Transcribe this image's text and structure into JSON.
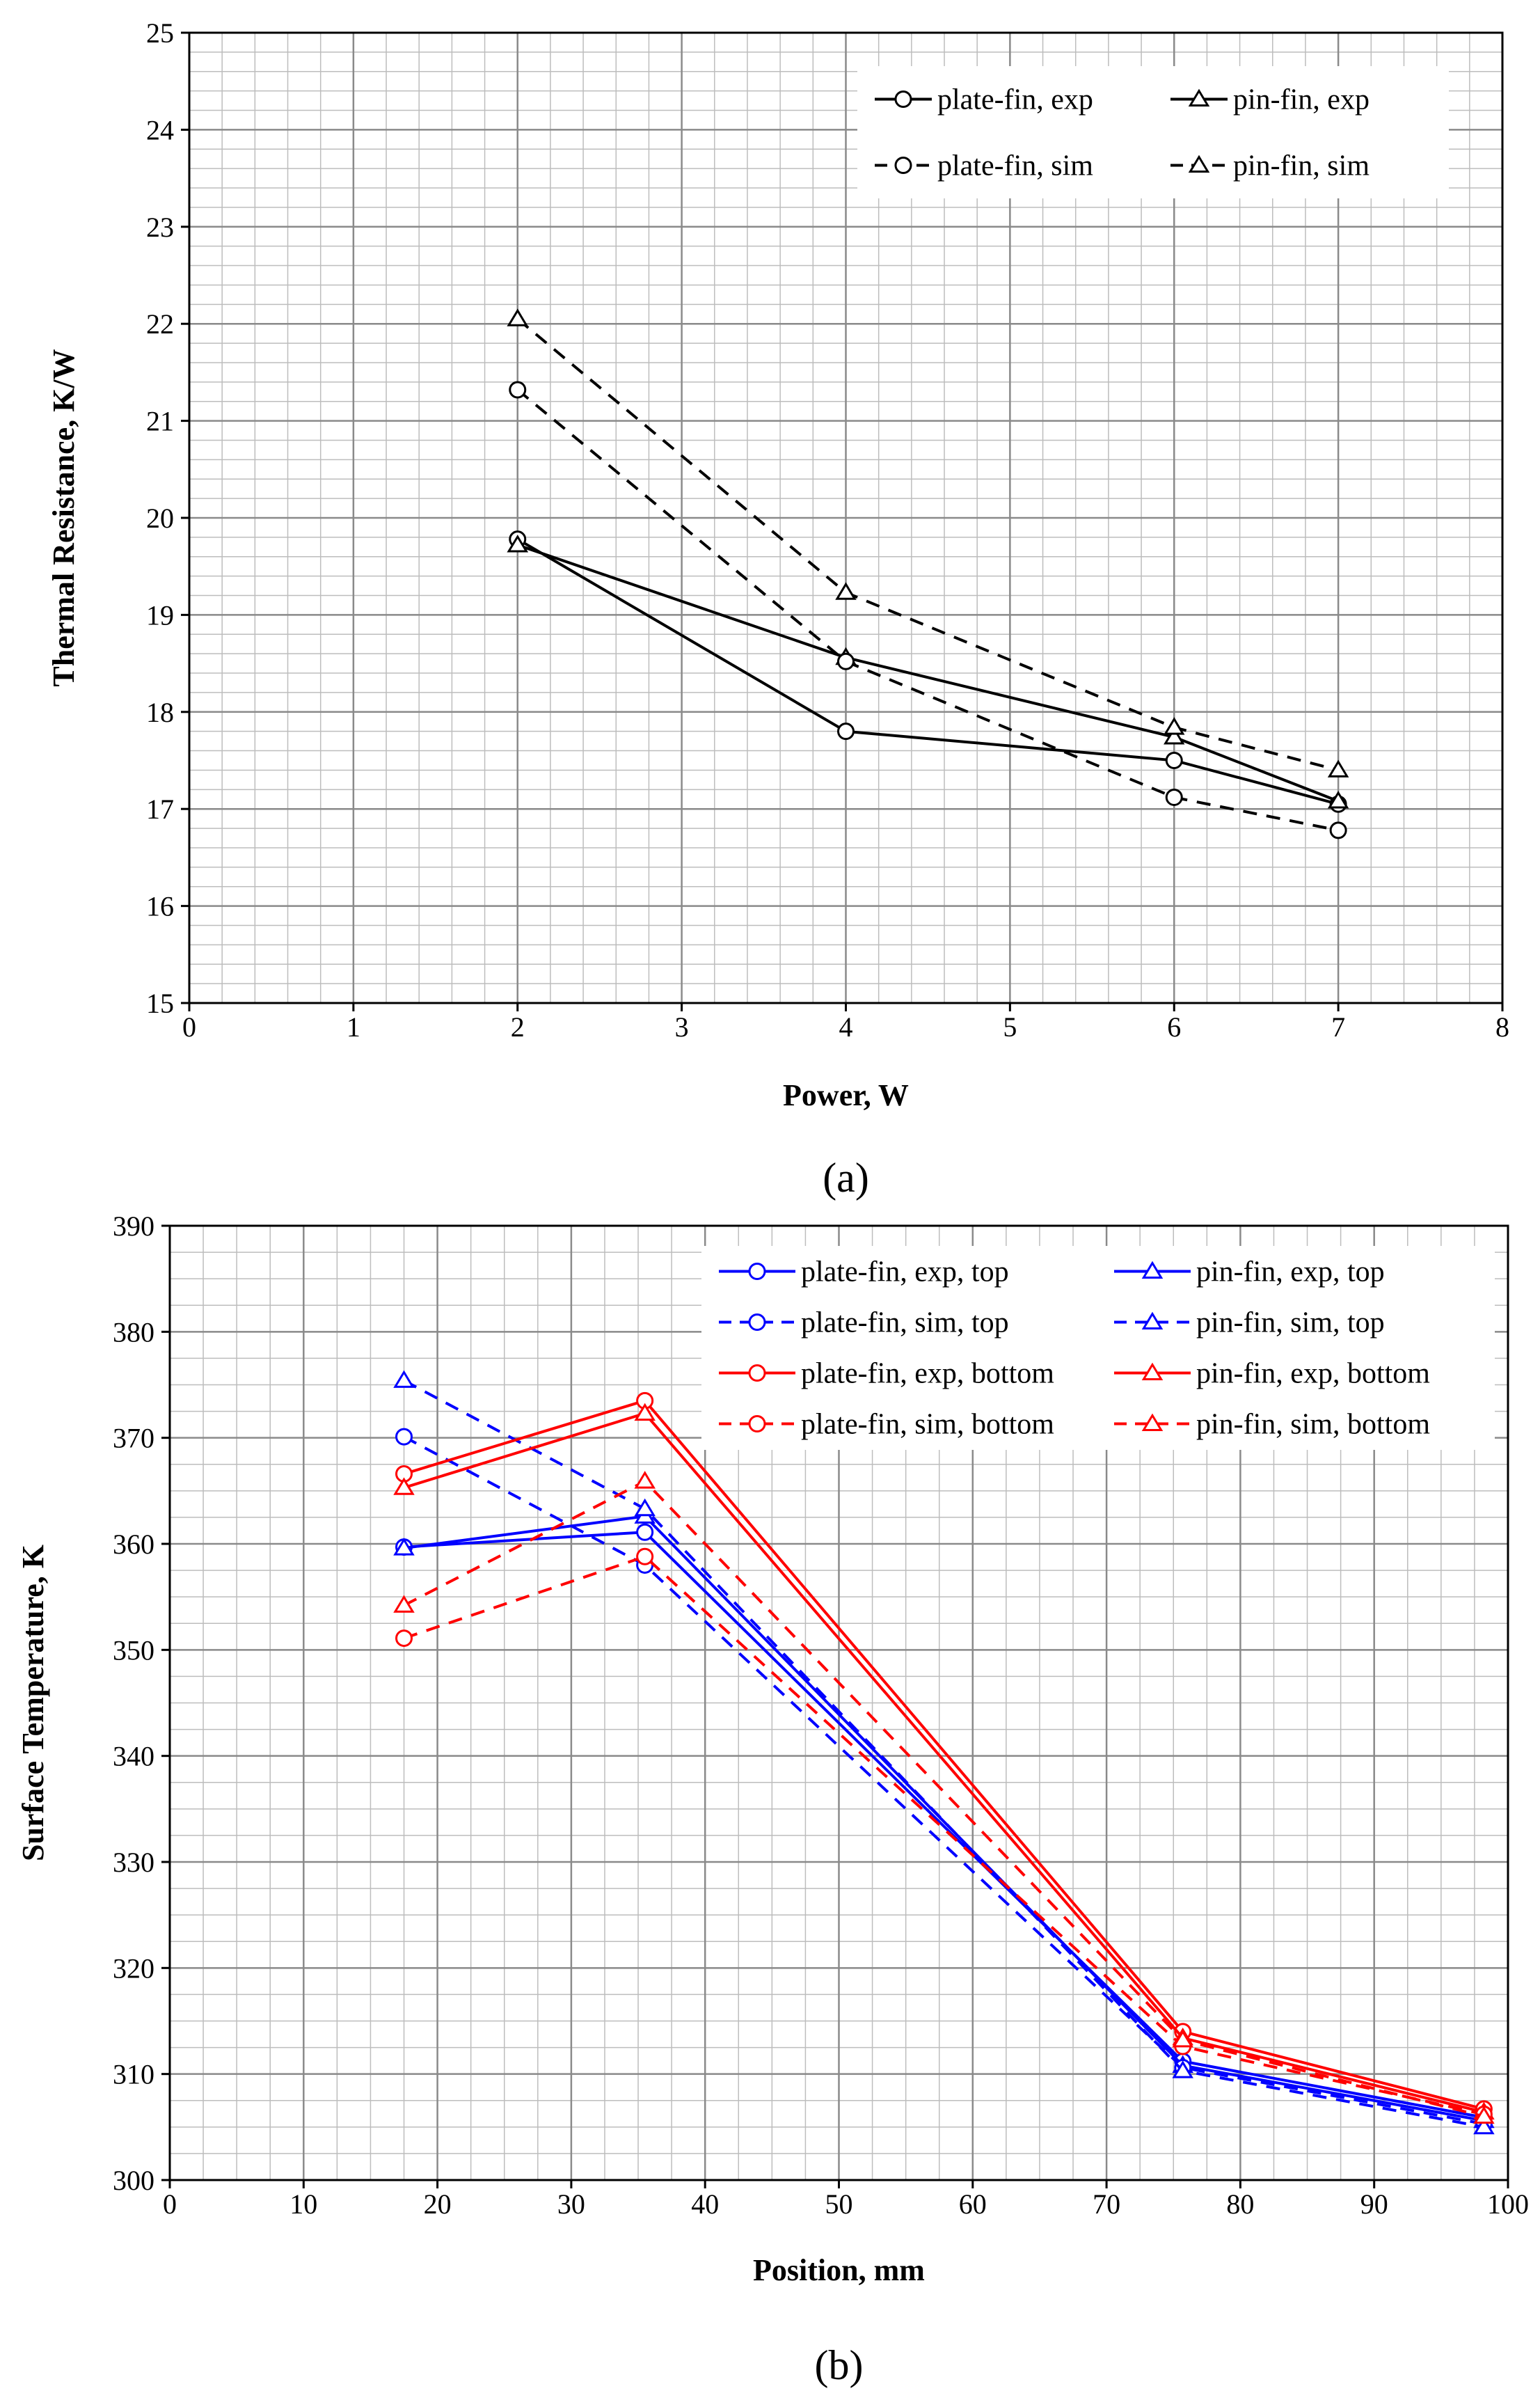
{
  "chart_data": [
    {
      "type": "line",
      "panel_label": "(a)",
      "xlabel": "Power, W",
      "ylabel": "Thermal Resistance,  K/W",
      "xlim": [
        0,
        8
      ],
      "ylim": [
        15,
        25
      ],
      "xticks": [
        0,
        1,
        2,
        3,
        4,
        5,
        6,
        7,
        8
      ],
      "yticks": [
        15,
        16,
        17,
        18,
        19,
        20,
        21,
        22,
        23,
        24,
        25
      ],
      "grid": true,
      "legend_position": "top-right",
      "series": [
        {
          "name": "plate-fin, exp",
          "color": "#000000",
          "dashed": false,
          "marker": "circle",
          "x": [
            2,
            4,
            6,
            7
          ],
          "y": [
            19.78,
            17.8,
            17.5,
            17.05
          ]
        },
        {
          "name": "pin-fin, exp",
          "color": "#000000",
          "dashed": false,
          "marker": "triangle",
          "x": [
            2,
            4,
            6,
            7
          ],
          "y": [
            19.72,
            18.56,
            17.74,
            17.08
          ]
        },
        {
          "name": "plate-fin, sim",
          "color": "#000000",
          "dashed": true,
          "marker": "circle",
          "x": [
            2,
            4,
            6,
            7
          ],
          "y": [
            21.32,
            18.52,
            17.12,
            16.78
          ]
        },
        {
          "name": "pin-fin, sim",
          "color": "#000000",
          "dashed": true,
          "marker": "triangle",
          "x": [
            2,
            4,
            6,
            7
          ],
          "y": [
            22.05,
            19.23,
            17.84,
            17.4
          ]
        }
      ]
    },
    {
      "type": "line",
      "panel_label": "(b)",
      "xlabel": "Position, mm",
      "ylabel": "Surface Temperature, K",
      "xlim": [
        0,
        100
      ],
      "ylim": [
        300,
        390
      ],
      "xticks": [
        0,
        10,
        20,
        30,
        40,
        50,
        60,
        70,
        80,
        90,
        100
      ],
      "yticks": [
        300,
        310,
        320,
        330,
        340,
        350,
        360,
        370,
        380,
        390
      ],
      "grid": true,
      "legend_position": "top-right",
      "series": [
        {
          "name": "plate-fin, exp, top",
          "color": "#0000ff",
          "dashed": false,
          "marker": "circle",
          "x": [
            17.5,
            35.5,
            75.7,
            98.2
          ],
          "y": [
            359.7,
            361.1,
            311.2,
            305.9
          ]
        },
        {
          "name": "pin-fin, exp, top",
          "color": "#0000ff",
          "dashed": false,
          "marker": "triangle",
          "x": [
            17.5,
            35.5,
            75.7,
            98.2
          ],
          "y": [
            359.6,
            362.6,
            310.8,
            305.6
          ]
        },
        {
          "name": "plate-fin, sim, top",
          "color": "#0000ff",
          "dashed": true,
          "marker": "circle",
          "x": [
            17.5,
            35.5,
            75.7,
            98.2
          ],
          "y": [
            370.1,
            358.0,
            310.6,
            305.3
          ]
        },
        {
          "name": "pin-fin, sim, top",
          "color": "#0000ff",
          "dashed": true,
          "marker": "triangle",
          "x": [
            17.5,
            35.5,
            75.7,
            98.2
          ],
          "y": [
            375.4,
            363.3,
            310.3,
            305.0
          ]
        },
        {
          "name": "plate-fin, exp, bottom",
          "color": "#ff0000",
          "dashed": false,
          "marker": "circle",
          "x": [
            17.5,
            35.5,
            75.7,
            98.2
          ],
          "y": [
            366.6,
            373.5,
            314.0,
            306.7
          ]
        },
        {
          "name": "pin-fin, exp, bottom",
          "color": "#ff0000",
          "dashed": false,
          "marker": "triangle",
          "x": [
            17.5,
            35.5,
            75.7,
            98.2
          ],
          "y": [
            365.3,
            372.3,
            313.4,
            306.4
          ]
        },
        {
          "name": "plate-fin, sim, bottom",
          "color": "#ff0000",
          "dashed": true,
          "marker": "circle",
          "x": [
            17.5,
            35.5,
            75.7,
            98.2
          ],
          "y": [
            351.1,
            358.8,
            312.6,
            306.2
          ]
        },
        {
          "name": "pin-fin, sim, bottom",
          "color": "#ff0000",
          "dashed": true,
          "marker": "triangle",
          "x": [
            17.5,
            35.5,
            75.7,
            98.2
          ],
          "y": [
            354.2,
            365.9,
            313.2,
            306.0
          ]
        }
      ]
    }
  ]
}
